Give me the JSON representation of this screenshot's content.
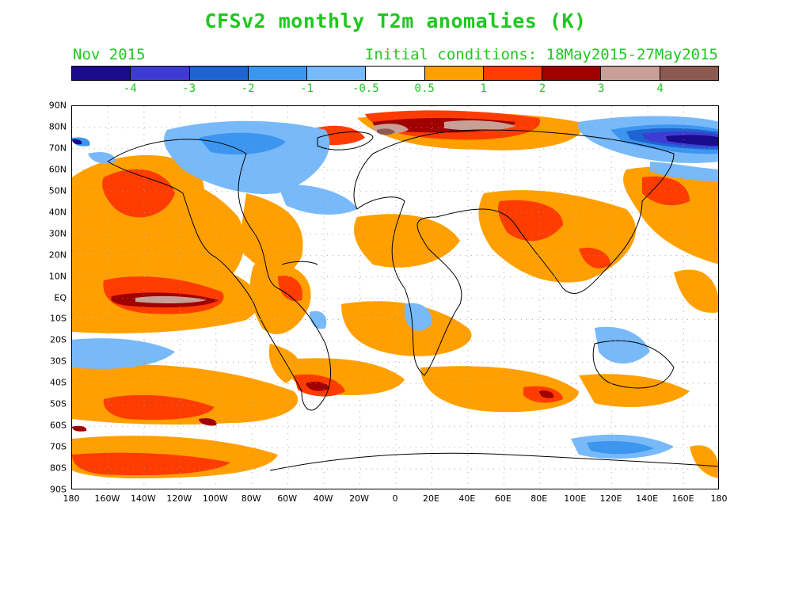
{
  "header": {
    "title": "CFSv2 monthly T2m anomalies (K)",
    "month": "Nov 2015",
    "initial_conditions": "Initial conditions: 18May2015-27May2015"
  },
  "colorbar": {
    "colors": [
      "#1a0a8c",
      "#3c3cd2",
      "#1e64d2",
      "#3c96f0",
      "#78b9fa",
      "#ffffff",
      "#ffa000",
      "#ff3c00",
      "#a00000",
      "#c8a096",
      "#8c5a50"
    ],
    "labels": [
      "-4",
      "-3",
      "-2",
      "-1",
      "-0.5",
      "0.5",
      "1",
      "2",
      "3",
      "4"
    ]
  },
  "map": {
    "lat_labels": [
      "90N",
      "80N",
      "70N",
      "60N",
      "50N",
      "40N",
      "30N",
      "20N",
      "10N",
      "EQ",
      "10S",
      "20S",
      "30S",
      "40S",
      "50S",
      "60S",
      "70S",
      "80S",
      "90S"
    ],
    "lon_labels": [
      "180",
      "160W",
      "140W",
      "120W",
      "100W",
      "80W",
      "60W",
      "40W",
      "20W",
      "0",
      "20E",
      "40E",
      "60E",
      "80E",
      "100E",
      "120E",
      "140E",
      "160E",
      "180"
    ]
  }
}
